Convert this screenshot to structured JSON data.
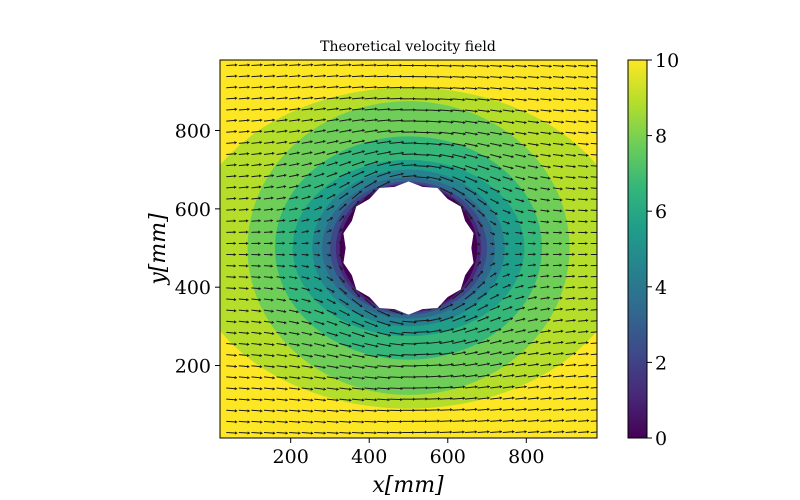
{
  "chart_data": {
    "type": "heatmap",
    "subtype": "filled contour with quiver arrows",
    "title": "Theoretical velocity field",
    "xlabel": "x[mm]",
    "ylabel": "y[mm]",
    "xlim": [
      20,
      980
    ],
    "ylim": [
      15,
      980
    ],
    "xticks": [
      200,
      400,
      600,
      800
    ],
    "yticks": [
      200,
      400,
      600,
      800
    ],
    "colorbar": {
      "colormap": "viridis",
      "range": [
        0,
        10
      ],
      "ticks": [
        0,
        2,
        4,
        6,
        8,
        10
      ]
    },
    "obstacle": {
      "shape": "cylinder",
      "center": [
        500,
        500
      ],
      "radius": 165
    },
    "field": {
      "freestream_speed": 10,
      "contour_levels": [
        0,
        1,
        2,
        3,
        4,
        5,
        6,
        7,
        8,
        9,
        10
      ],
      "contours_approx": [
        {
          "level": 9,
          "semi_axes_x": 560,
          "semi_axes_y": 410
        },
        {
          "level": 8,
          "semi_axes_x": 410,
          "semi_axes_y": 375
        },
        {
          "level": 7,
          "semi_axes_x": 340,
          "semi_axes_y": 285
        },
        {
          "level": 6,
          "semi_axes_x": 295,
          "semi_axes_y": 225
        },
        {
          "level": 5,
          "semi_axes_x": 245,
          "semi_axes_y": 200
        },
        {
          "level": 4,
          "semi_axes_x": 220,
          "semi_axes_y": 180
        },
        {
          "level": 3,
          "semi_axes_x": 200,
          "semi_axes_y": 170
        },
        {
          "level": 2,
          "semi_axes_x": 185,
          "semi_axes_y": 165
        },
        {
          "level": 1,
          "semi_axes_x": 175,
          "semi_axes_y": 162
        }
      ],
      "quiver_direction": "left-to-right"
    },
    "colors": {
      "level_colors": [
        "#440154",
        "#482878",
        "#3e4989",
        "#31688e",
        "#26828e",
        "#1f9e89",
        "#35b779",
        "#6ece58",
        "#b5de2b",
        "#fde725"
      ],
      "arrow": "#1a1a1a",
      "obstacle_fill": "#ffffff"
    }
  }
}
